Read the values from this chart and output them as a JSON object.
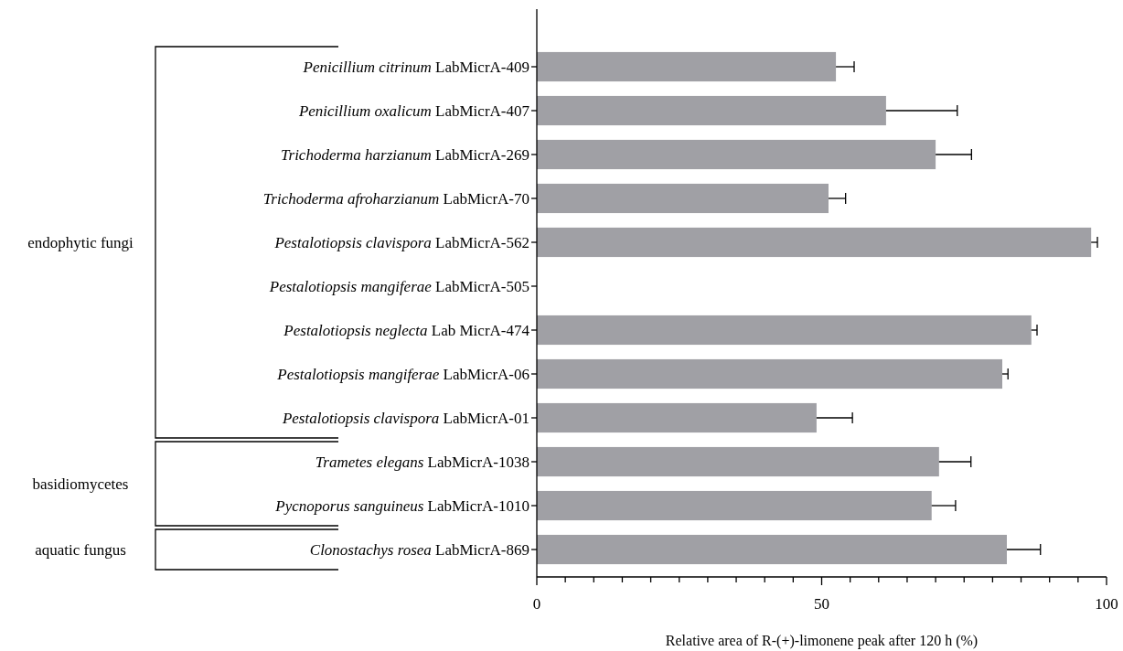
{
  "chart_data": {
    "type": "bar",
    "orientation": "horizontal",
    "categories": [
      "Penicillium citrinum LabMicrA-409",
      "Penicillium oxalicum LabMicrA-407",
      "Trichoderma harzianum LabMicrA-269",
      "Trichoderma afroharzianum LabMicrA-70",
      "Pestalotiopsis clavispora LabMicrA-562",
      "Pestalotiopsis mangiferae LabMicrA-505",
      "Pestalotiopsis neglecta Lab MicrA-474",
      "Pestalotiopsis mangiferae LabMicrA-06",
      "Pestalotiopsis clavispora LabMicrA-01",
      "Trametes elegans LabMicrA-1038",
      "Pycnoporus sanguineus LabMicrA-1010",
      "Clonostachys rosea LabMicrA-869"
    ],
    "values": [
      52.5,
      61.3,
      70,
      51.2,
      97.3,
      0,
      86.8,
      81.7,
      49.1,
      70.6,
      69.3,
      82.5
    ],
    "errors": [
      [
        52.5,
        55.7
      ],
      [
        61.3,
        73.8
      ],
      [
        70,
        76.3
      ],
      [
        51.2,
        54.2
      ],
      [
        97.3,
        98.4
      ],
      null,
      [
        86.8,
        87.8
      ],
      [
        81.7,
        82.7
      ],
      [
        49.1,
        55.4
      ],
      [
        70.6,
        76.2
      ],
      [
        69.3,
        73.5
      ],
      [
        82.5,
        88.4
      ]
    ],
    "color": "#a0a0a5",
    "xlim": [
      0,
      100
    ],
    "xticks": [
      0,
      {
        "value": 5,
        "label": null
      },
      {
        "value": 10,
        "label": null
      },
      {
        "value": 15,
        "label": null
      },
      {
        "value": 20,
        "label": null
      },
      {
        "value": 25,
        "label": null
      },
      {
        "value": 30,
        "label": null
      },
      {
        "value": 35,
        "label": null
      },
      {
        "value": 40,
        "label": null
      },
      {
        "value": 45,
        "label": null
      },
      50,
      {
        "value": 55,
        "label": null
      },
      {
        "value": 60,
        "label": null
      },
      {
        "value": 65,
        "label": null
      },
      {
        "value": 70,
        "label": null
      },
      {
        "value": 75,
        "label": null
      },
      {
        "value": 80,
        "label": null
      },
      {
        "value": 85,
        "label": null
      },
      {
        "value": 90,
        "label": null
      },
      {
        "value": 95,
        "label": null
      },
      100
    ],
    "xlabel": "Relative area of R-(+)-limonene peak after 120 h (%)",
    "annotations": [
      "endophytic fungi",
      "basidiomycetes",
      "aquatic fungus"
    ]
  }
}
